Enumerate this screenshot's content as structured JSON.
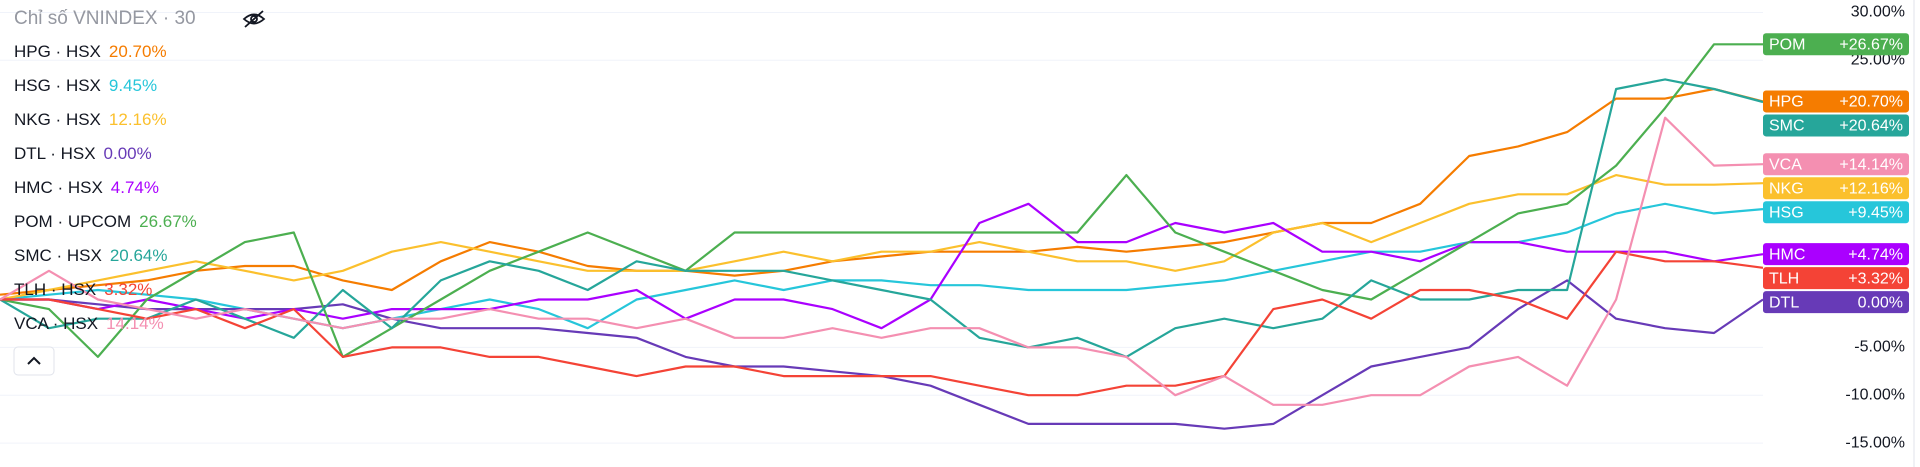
{
  "chart_data": {
    "type": "line",
    "title": "Chỉ số VNINDEX · 30",
    "yticks": [
      {
        "value": 30,
        "label": "30.00%"
      },
      {
        "value": 25,
        "label": "25.00%"
      },
      {
        "value": -5,
        "label": "-5.00%"
      },
      {
        "value": -10,
        "label": "-10.00%"
      },
      {
        "value": -15,
        "label": "-15.00%"
      }
    ],
    "ylim": [
      -17.5,
      31.3
    ],
    "series": [
      {
        "name": "HPG",
        "legend": "HPG · HSX",
        "color": "#f57c00",
        "change": 20.7,
        "change_label": "20.70%",
        "axis_label": "+20.70%",
        "values": [
          0.5,
          1,
          1.5,
          2,
          3,
          3.5,
          3.5,
          2,
          1,
          4,
          6,
          5,
          3.5,
          3,
          3,
          2.5,
          3,
          4,
          4.5,
          5,
          5,
          5,
          5.5,
          5,
          5.5,
          6,
          7,
          8,
          8,
          10,
          15,
          16,
          17.5,
          21,
          21,
          22,
          20.7
        ]
      },
      {
        "name": "HSG",
        "legend": "HSG · HSX",
        "color": "#26c6da",
        "change": 9.45,
        "change_label": "9.45%",
        "axis_label": "+9.45%",
        "values": [
          0,
          0.5,
          1,
          0.5,
          0,
          -1,
          -2,
          -3,
          -2,
          -1,
          0,
          -1,
          -3,
          0,
          1,
          2,
          1,
          2,
          2,
          1.5,
          1.5,
          1,
          1,
          1,
          1.5,
          2,
          3,
          4,
          5,
          5,
          6,
          6,
          7,
          9,
          10,
          9,
          9.45
        ]
      },
      {
        "name": "NKG",
        "legend": "NKG · HSX",
        "color": "#fbc02d",
        "change": 12.16,
        "change_label": "12.16%",
        "axis_label": "+12.16%",
        "values": [
          0,
          1,
          2,
          3,
          4,
          3,
          2,
          3,
          5,
          6,
          5,
          4,
          3,
          3,
          3,
          4,
          5,
          4,
          5,
          5,
          6,
          5,
          4,
          4,
          3,
          4,
          7,
          8,
          6,
          8,
          10,
          11,
          11,
          13,
          12,
          12,
          12.16
        ]
      },
      {
        "name": "DTL",
        "legend": "DTL · HSX",
        "color": "#673ab7",
        "change": 0.0,
        "change_label": "0.00%",
        "axis_label": "0.00%",
        "values": [
          0,
          0,
          -0.5,
          -1,
          -1,
          -1,
          -1,
          -0.5,
          -2,
          -3,
          -3,
          -3,
          -3.5,
          -4,
          -6,
          -7,
          -7,
          -7.5,
          -8,
          -9,
          -11,
          -13,
          -13,
          -13,
          -13,
          -13.5,
          -13,
          -10,
          -7,
          -6,
          -5,
          -1,
          2,
          -2,
          -3,
          -3.5,
          0
        ]
      },
      {
        "name": "HMC",
        "legend": "HMC · HSX",
        "color": "#aa00ff",
        "change": 4.74,
        "change_label": "4.74%",
        "axis_label": "+4.74%",
        "values": [
          0,
          0,
          -1,
          0,
          -1,
          -2,
          -1,
          -2,
          -1,
          -1,
          -1,
          0,
          0,
          1,
          -2,
          0,
          0,
          -1,
          -3,
          0,
          8,
          10,
          6,
          6,
          8,
          7,
          8,
          5,
          5,
          4,
          6,
          6,
          5,
          5,
          5,
          4,
          4.74
        ]
      },
      {
        "name": "POM",
        "legend": "POM · UPCOM",
        "color": "#4caf50",
        "change": 26.67,
        "change_label": "26.67%",
        "axis_label": "+26.67%",
        "values": [
          0,
          -1,
          -6,
          0,
          3,
          6,
          7,
          -6,
          -3,
          0,
          3,
          5,
          7,
          5,
          3,
          7,
          7,
          7,
          7,
          7,
          7,
          7,
          7,
          13,
          7,
          5,
          3,
          1,
          0,
          3,
          6,
          9,
          10,
          14,
          20,
          26.67,
          26.67
        ]
      },
      {
        "name": "SMC",
        "legend": "SMC · HSX",
        "color": "#26a69a",
        "change": 20.64,
        "change_label": "20.64%",
        "axis_label": "+20.64%",
        "values": [
          0,
          -3,
          -2,
          -2,
          0,
          -2,
          -4,
          1,
          -3,
          2,
          4,
          3,
          1,
          4,
          3,
          3,
          3,
          2,
          1,
          0,
          -4,
          -5,
          -4,
          -6,
          -3,
          -2,
          -3,
          -2,
          2,
          0,
          0,
          1,
          1,
          22,
          23,
          22,
          20.64
        ]
      },
      {
        "name": "TLH",
        "legend": "TLH · HSX",
        "color": "#f44336",
        "change": 3.32,
        "change_label": "3.32%",
        "axis_label": "+3.32%",
        "values": [
          0,
          0,
          -1,
          -2,
          -1,
          -3,
          -1,
          -6,
          -5,
          -5,
          -6,
          -6,
          -7,
          -8,
          -7,
          -7,
          -8,
          -8,
          -8,
          -8,
          -9,
          -10,
          -10,
          -9,
          -9,
          -8,
          -1,
          0,
          -2,
          1,
          1,
          0,
          -2,
          5,
          4,
          4,
          3.32
        ]
      },
      {
        "name": "VCA",
        "legend": "VCA · HSX",
        "color": "#f48fb1",
        "change": 14.14,
        "change_label": "14.14%",
        "axis_label": "+14.14%",
        "values": [
          0,
          3,
          0,
          -1,
          -2,
          -1,
          -2,
          -3,
          -2,
          -2,
          -1,
          -2,
          -2,
          -3,
          -2,
          -4,
          -4,
          -3,
          -4,
          -3,
          -3,
          -5,
          -5,
          -6,
          -10,
          -8,
          -11,
          -11,
          -10,
          -10,
          -7,
          -6,
          -9,
          0,
          19,
          14,
          14.14
        ]
      }
    ]
  }
}
